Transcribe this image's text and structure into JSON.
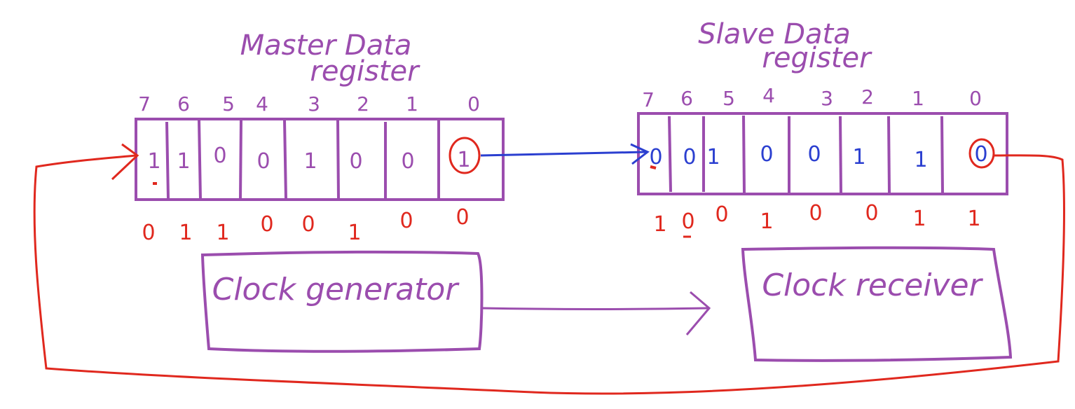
{
  "colors": {
    "purple": "#9b4dae",
    "red": "#e0281e",
    "blue": "#2b3fd0",
    "background": "#ffffff"
  },
  "master": {
    "title_line1": "Master Data",
    "title_line2": "register",
    "indices": [
      "7",
      "6",
      "5",
      "4",
      "3",
      "2",
      "1",
      "0"
    ],
    "bits": [
      "1",
      "1",
      "0",
      "0",
      "1",
      "0",
      "0",
      "1"
    ],
    "below": [
      "0",
      "1",
      "1",
      "0",
      "0",
      "1",
      "0",
      "0"
    ]
  },
  "slave": {
    "title_line1": "Slave Data",
    "title_line2": "register",
    "indices": [
      "7",
      "6",
      "5",
      "4",
      "3",
      "2",
      "1",
      "0"
    ],
    "bits": [
      "0",
      "0",
      "1",
      "0",
      "0",
      "1",
      "1",
      "0"
    ],
    "below": [
      "1",
      "0",
      "0",
      "1",
      "0",
      "0",
      "1",
      "1"
    ]
  },
  "clock_generator": {
    "label": "Clock generator"
  },
  "clock_receiver": {
    "label": "Clock receiver"
  }
}
